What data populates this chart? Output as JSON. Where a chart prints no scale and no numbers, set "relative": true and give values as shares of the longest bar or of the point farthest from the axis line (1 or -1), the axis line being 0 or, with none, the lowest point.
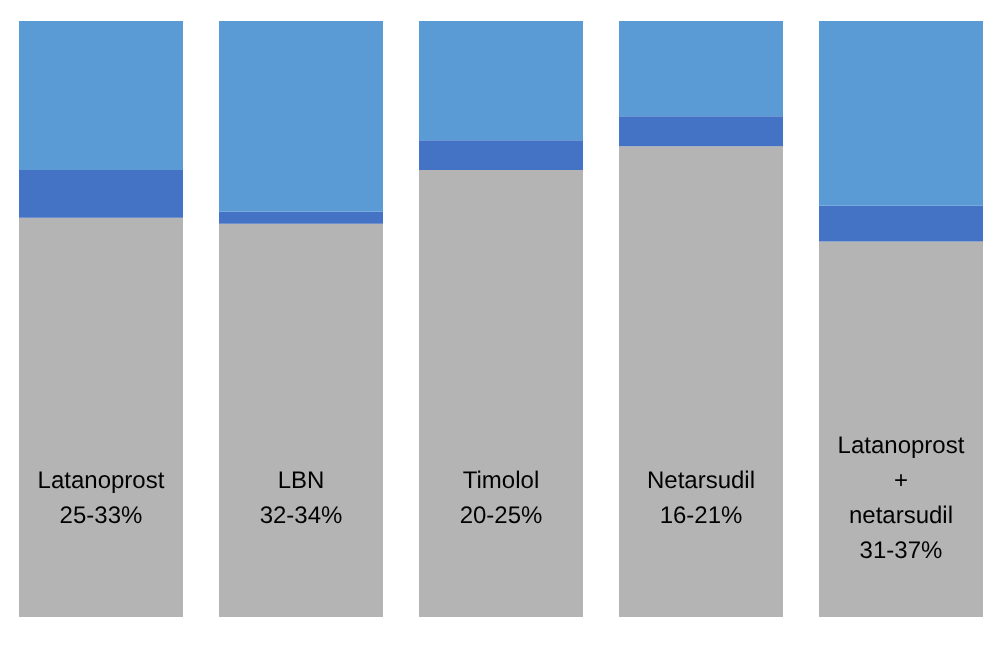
{
  "chart_data": {
    "type": "bar",
    "stacked": true,
    "relative": true,
    "categories": [
      "Latanoprost\n25-33%",
      "LBN\n32-34%",
      "Timolol\n20-25%",
      "Netarsudil\n16-21%",
      "Latanoprost\n+\nnetarsudil\n31-37%"
    ],
    "series": [
      {
        "color": "#b4b4b4",
        "values": [
          0.67,
          0.66,
          0.75,
          0.79,
          0.63
        ]
      },
      {
        "color": "#4472c4",
        "values": [
          0.08,
          0.02,
          0.05,
          0.05,
          0.06
        ]
      },
      {
        "color": "#5b9bd5",
        "values": [
          0.25,
          0.32,
          0.2,
          0.16,
          0.31
        ]
      }
    ]
  }
}
